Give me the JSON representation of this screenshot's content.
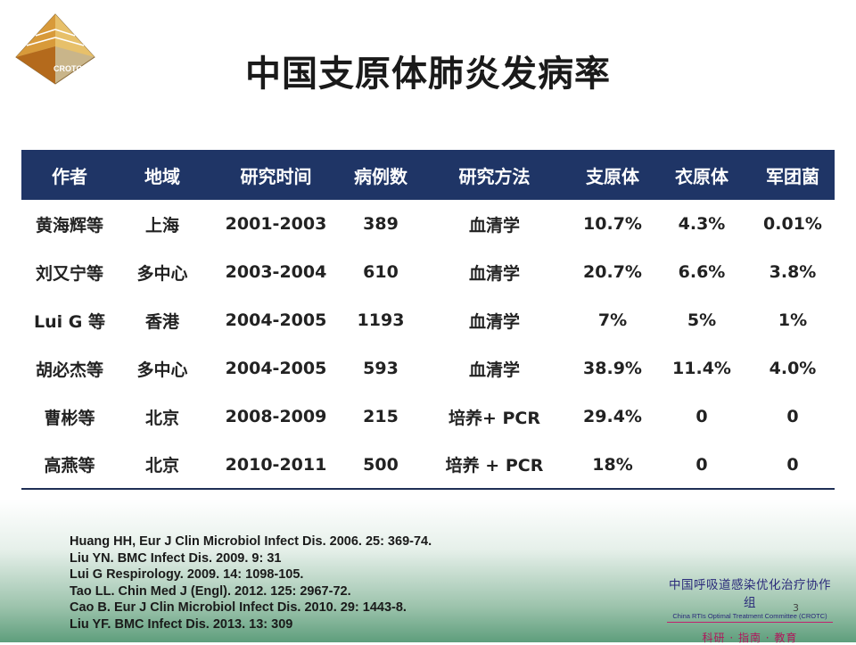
{
  "logo": {
    "text": "CROTC"
  },
  "title": "中国支原体肺炎发病率",
  "table": {
    "headers": [
      "作者",
      "地域",
      "研究时间",
      "病例数",
      "研究方法",
      "支原体",
      "衣原体",
      "军团菌"
    ],
    "rows": [
      [
        "黄海辉等",
        "上海",
        "2001-2003",
        "389",
        "血清学",
        "10.7%",
        "4.3%",
        "0.01%"
      ],
      [
        "刘又宁等",
        "多中心",
        "2003-2004",
        "610",
        "血清学",
        "20.7%",
        "6.6%",
        "3.8%"
      ],
      [
        "Lui G 等",
        "香港",
        "2004-2005",
        "1193",
        "血清学",
        "7%",
        "5%",
        "1%"
      ],
      [
        "胡必杰等",
        "多中心",
        "2004-2005",
        "593",
        "血清学",
        "38.9%",
        "11.4%",
        "4.0%"
      ],
      [
        "曹彬等",
        "北京",
        "2008-2009",
        "215",
        "培养+ PCR",
        "29.4%",
        "0",
        "0"
      ],
      [
        "高燕等",
        "北京",
        "2010-2011",
        "500",
        "培养 + PCR",
        "18%",
        "0",
        "0"
      ]
    ]
  },
  "references": [
    "Huang HH, Eur J Clin Microbiol Infect Dis. 2006. 25: 369-74.",
    "Liu YN. BMC Infect Dis. 2009. 9: 31",
    "Lui G Respirology. 2009. 14: 1098-105.",
    "Tao LL. Chin Med J (Engl). 2012. 125: 2967-72.",
    "Cao B. Eur J Clin Microbiol Infect Dis. 2010. 29: 1443-8.",
    "Liu YF. BMC Infect Dis. 2013. 13: 309"
  ],
  "org": {
    "name": "中国呼吸道感染优化治疗协作组",
    "english": "China RTIs Optimal Treatment Committee (CROTC)",
    "tagline": "科研 · 指南 · 教育"
  },
  "page_number": "3",
  "colors": {
    "header_bg": "#1f3566",
    "header_text": "#ffffff",
    "footer_green": "#5e9e7c",
    "org_magenta": "#b0185c"
  }
}
